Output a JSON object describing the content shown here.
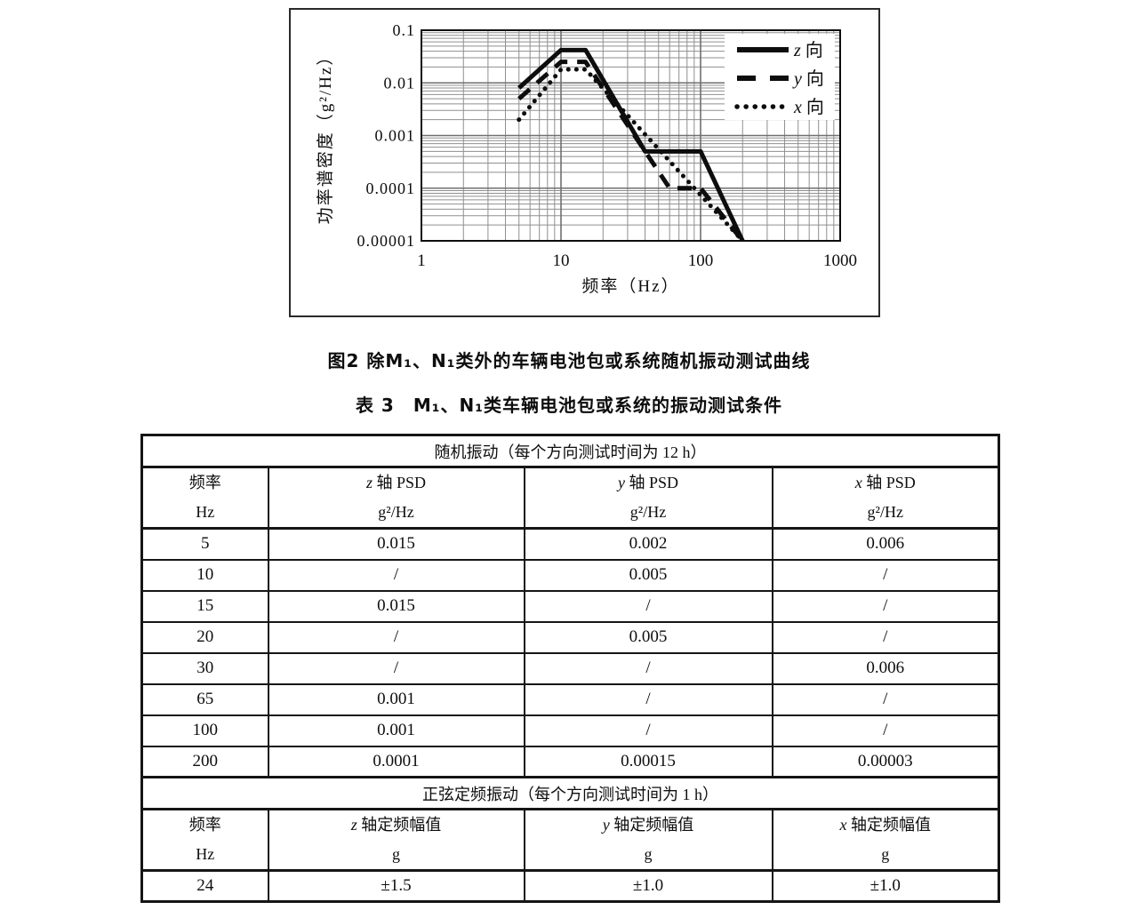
{
  "page": {
    "background": "#ffffff",
    "ink_color": "#0d0d0d",
    "grid_color": "#8f8f8f"
  },
  "figure": {
    "caption": "图2 除M₁、N₁类外的车辆电池包或系统随机振动测试曲线",
    "x_axis_title": "频率（Hz）",
    "y_axis_title": "功率谱密度（g²/Hz）",
    "x_ticks": [
      "1",
      "10",
      "100",
      "1000"
    ],
    "y_ticks": [
      "0.1",
      "0.01",
      "0.001",
      "0.0001",
      "0.00001"
    ],
    "legend": [
      {
        "label": "z 向",
        "style": "solid"
      },
      {
        "label": "y 向",
        "style": "dashed"
      },
      {
        "label": "x 向",
        "style": "dotted"
      }
    ]
  },
  "chart_data": {
    "type": "line",
    "title": "",
    "xlabel": "频率（Hz）",
    "ylabel": "功率谱密度（g²/Hz）",
    "x_scale": "log",
    "y_scale": "log",
    "xlim": [
      1,
      1000
    ],
    "ylim": [
      1e-05,
      0.1
    ],
    "grid": "log major and minor, both axes",
    "legend_position": "inside top-right",
    "series": [
      {
        "name": "z 向",
        "line_style": "solid",
        "points": [
          [
            5,
            0.008
          ],
          [
            10,
            0.042
          ],
          [
            15,
            0.042
          ],
          [
            40,
            0.0005
          ],
          [
            100,
            0.0005
          ],
          [
            200,
            1e-05
          ]
        ]
      },
      {
        "name": "y 向",
        "line_style": "dashed",
        "points": [
          [
            5,
            0.005
          ],
          [
            10,
            0.025
          ],
          [
            15,
            0.025
          ],
          [
            60,
            0.0001
          ],
          [
            100,
            0.0001
          ],
          [
            200,
            1e-05
          ]
        ]
      },
      {
        "name": "x 向",
        "line_style": "dotted",
        "points": [
          [
            5,
            0.002
          ],
          [
            10,
            0.018
          ],
          [
            15,
            0.018
          ],
          [
            200,
            1e-05
          ]
        ]
      }
    ]
  },
  "table": {
    "caption": "表 3　M₁、N₁类车辆电池包或系统的振动测试条件",
    "sections": [
      {
        "header": "随机振动（每个方向测试时间为 12 h）",
        "col_headers": [
          {
            "line1": "频率",
            "line2": "Hz"
          },
          {
            "line1": "z 轴 PSD",
            "line2": "g²/Hz"
          },
          {
            "line1": "y 轴 PSD",
            "line2": "g²/Hz"
          },
          {
            "line1": "x 轴 PSD",
            "line2": "g²/Hz"
          }
        ],
        "rows": [
          [
            "5",
            "0.015",
            "0.002",
            "0.006"
          ],
          [
            "10",
            "/",
            "0.005",
            "/"
          ],
          [
            "15",
            "0.015",
            "/",
            "/"
          ],
          [
            "20",
            "/",
            "0.005",
            "/"
          ],
          [
            "30",
            "/",
            "/",
            "0.006"
          ],
          [
            "65",
            "0.001",
            "/",
            "/"
          ],
          [
            "100",
            "0.001",
            "/",
            "/"
          ],
          [
            "200",
            "0.0001",
            "0.00015",
            "0.00003"
          ]
        ]
      },
      {
        "header": "正弦定频振动（每个方向测试时间为 1 h）",
        "col_headers": [
          {
            "line1": "频率",
            "line2": "Hz"
          },
          {
            "line1": "z 轴定频幅值",
            "line2": "g"
          },
          {
            "line1": "y 轴定频幅值",
            "line2": "g"
          },
          {
            "line1": "x 轴定频幅值",
            "line2": "g"
          }
        ],
        "rows": [
          [
            "24",
            "±1.5",
            "±1.0",
            "±1.0"
          ]
        ]
      }
    ]
  }
}
